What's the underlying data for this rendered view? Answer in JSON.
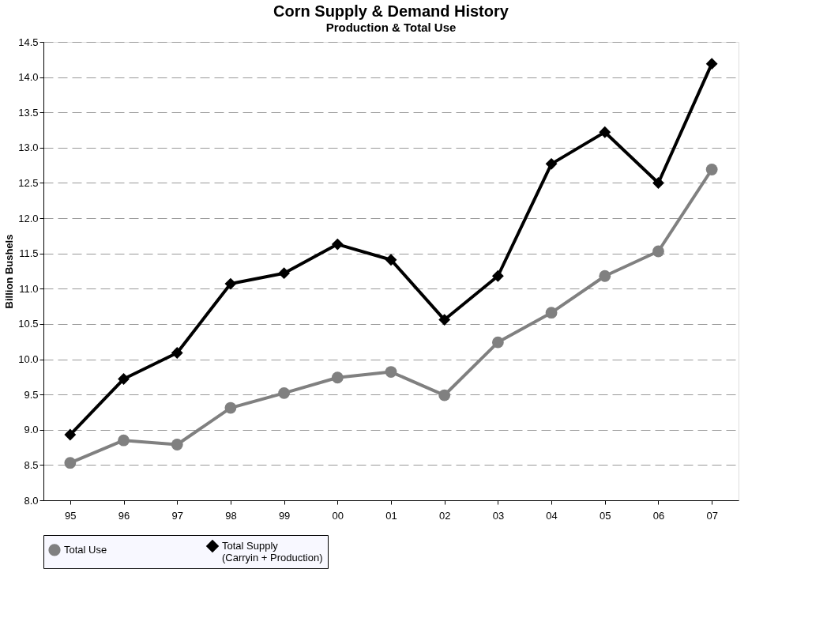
{
  "chart_data": {
    "type": "line",
    "title": "Corn Supply & Demand History",
    "subtitle": "Production & Total Use",
    "ylabel": "Billion Bushels",
    "categories": [
      "95",
      "96",
      "97",
      "98",
      "99",
      "00",
      "01",
      "02",
      "03",
      "04",
      "05",
      "06",
      "07"
    ],
    "series": [
      {
        "name": "Total Use",
        "color": "#808080",
        "marker": "circle",
        "values": [
          8.53,
          8.85,
          8.79,
          9.31,
          9.52,
          9.74,
          9.82,
          9.49,
          10.24,
          10.66,
          11.18,
          11.53,
          12.69
        ]
      },
      {
        "name": "Total Supply (Carryin + Production)",
        "color": "#000000",
        "marker": "diamond",
        "values": [
          8.93,
          9.72,
          10.09,
          11.07,
          11.22,
          11.63,
          11.41,
          10.56,
          11.18,
          12.77,
          13.22,
          12.5,
          14.19
        ]
      }
    ],
    "ylim": [
      8.0,
      14.5
    ],
    "yticks": [
      {
        "value": 8.0,
        "label": "8.0"
      },
      {
        "value": 8.5,
        "label": "8.5"
      },
      {
        "value": 9.0,
        "label": "9.0"
      },
      {
        "value": 9.5,
        "label": "9.5"
      },
      {
        "value": 10.0,
        "label": "10.0"
      },
      {
        "value": 10.5,
        "label": "10.5"
      },
      {
        "value": 11.0,
        "label": "11.0"
      },
      {
        "value": 11.5,
        "label": "11.5"
      },
      {
        "value": 12.0,
        "label": "12.0"
      },
      {
        "value": 12.5,
        "label": "12.5"
      },
      {
        "value": 13.0,
        "label": "13.0"
      },
      {
        "value": 13.5,
        "label": "13.5"
      },
      {
        "value": 14.0,
        "label": "14.0"
      },
      {
        "value": 14.5,
        "label": "14.5"
      }
    ],
    "grid": "y",
    "legend": "bottom"
  }
}
